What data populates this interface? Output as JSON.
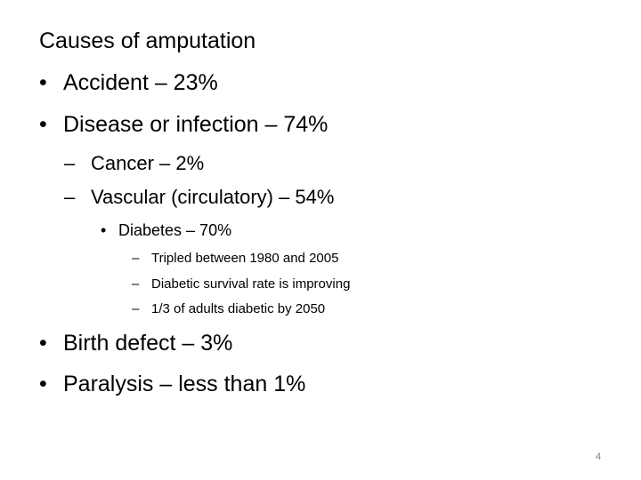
{
  "slide": {
    "heading": "Causes of amputation",
    "items": [
      {
        "marker": "•",
        "text": "Accident – 23%"
      },
      {
        "marker": "•",
        "text": "Disease or infection – 74%"
      },
      {
        "marker": "–",
        "text": "Cancer – 2%"
      },
      {
        "marker": "–",
        "text": "Vascular (circulatory) – 54%"
      },
      {
        "marker": "•",
        "text": "Diabetes – 70%"
      },
      {
        "marker": "–",
        "text": "Tripled between 1980 and 2005"
      },
      {
        "marker": "–",
        "text": "Diabetic survival rate is improving"
      },
      {
        "marker": "–",
        "text": "1/3 of adults diabetic by 2050"
      },
      {
        "marker": "•",
        "text": "Birth defect – 3%"
      },
      {
        "marker": "•",
        "text": "Paralysis – less than 1%"
      }
    ],
    "page_number": "4"
  }
}
